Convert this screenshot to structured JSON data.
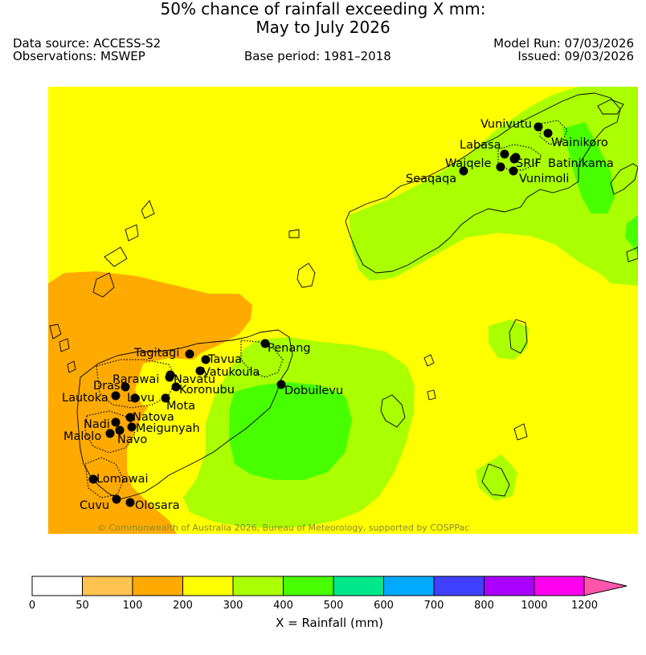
{
  "title_line1": "50% chance of rainfall exceeding X mm:",
  "title_line2": "May to July 2026",
  "data_source": "Data source: ACCESS-S2",
  "observations": "Observations: MSWEP",
  "base_period": "Base period: 1981–2018",
  "model_run": "Model Run: 07/03/2026",
  "issued": "Issued: 09/03/2026",
  "credit": "© Commonwealth of Australia 2026, Bureau of Meteorology, supported by COSPPac",
  "legend": {
    "title": "X = Rainfall (mm)",
    "bins": [
      {
        "label": "0",
        "color": "#ffffff"
      },
      {
        "label": "50",
        "color": "#ffc34f"
      },
      {
        "label": "100",
        "color": "#ffaa00"
      },
      {
        "label": "200",
        "color": "#ffff00"
      },
      {
        "label": "300",
        "color": "#aaff00"
      },
      {
        "label": "400",
        "color": "#48ff00"
      },
      {
        "label": "500",
        "color": "#00e68a"
      },
      {
        "label": "600",
        "color": "#00aaff"
      },
      {
        "label": "700",
        "color": "#4040ff"
      },
      {
        "label": "800",
        "color": "#aa00ff"
      },
      {
        "label": "1000",
        "color": "#ff00ee"
      }
    ],
    "last_label": "1200",
    "arrow_color": "#ff55aa"
  },
  "places": [
    {
      "name": "Vunivutu"
    },
    {
      "name": "Wainikoro"
    },
    {
      "name": "Labasa"
    },
    {
      "name": "Waiqele"
    },
    {
      "name": "SRIF"
    },
    {
      "name": "Batinikama"
    },
    {
      "name": "Seaqaqa"
    },
    {
      "name": "Vunimoli"
    },
    {
      "name": "Penang"
    },
    {
      "name": "Tagitagi"
    },
    {
      "name": "Tavua"
    },
    {
      "name": "Vatukoula"
    },
    {
      "name": "Rarawai"
    },
    {
      "name": "Navatu"
    },
    {
      "name": "Drasa"
    },
    {
      "name": "Koronubu"
    },
    {
      "name": "Lautoka"
    },
    {
      "name": "Lovu"
    },
    {
      "name": "Mota"
    },
    {
      "name": "Dobuilevu"
    },
    {
      "name": "Natova"
    },
    {
      "name": "Nadi"
    },
    {
      "name": "Meigunyah"
    },
    {
      "name": "Malolo"
    },
    {
      "name": "Navo"
    },
    {
      "name": "Lomawai"
    },
    {
      "name": "Cuvu"
    },
    {
      "name": "Olosara"
    }
  ]
}
